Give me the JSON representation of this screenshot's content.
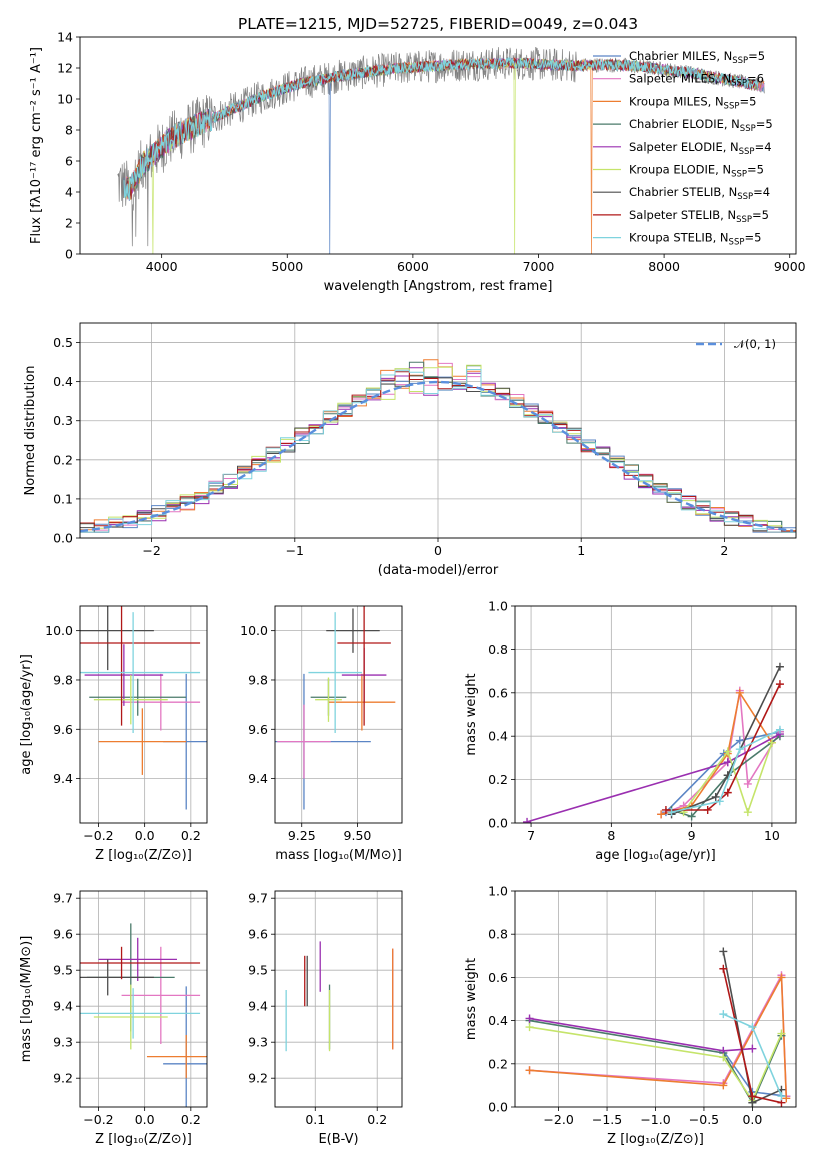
{
  "chart_data": [
    {
      "id": "spectrum",
      "type": "line",
      "title": "PLATE=1215, MJD=52725, FIBERID=0049, z=0.043",
      "xlabel": "wavelength [Angstrom, rest frame]",
      "ylabel": "Flux [fλ10⁻¹⁷ erg cm⁻² s⁻¹ A⁻¹]",
      "xlim": [
        3350,
        9050
      ],
      "ylim": [
        0,
        14
      ],
      "xticks": [
        4000,
        5000,
        6000,
        7000,
        8000,
        9000
      ],
      "yticks": [
        0,
        2,
        4,
        6,
        8,
        10,
        12,
        14
      ],
      "data_color": "#808080",
      "continuum": {
        "x": [
          3650,
          3750,
          3850,
          3950,
          4050,
          4150,
          4250,
          4350,
          4450,
          4550,
          4650,
          4750,
          4850,
          4950,
          5100,
          5300,
          5500,
          5700,
          5900,
          6100,
          6300,
          6500,
          6700,
          6900,
          7100,
          7300,
          7450,
          7600,
          7800,
          8000,
          8200,
          8400,
          8600,
          8800
        ],
        "y": [
          4.6,
          4.2,
          5.8,
          6.5,
          7.3,
          7.8,
          8.2,
          8.6,
          8.9,
          9.3,
          9.6,
          10.0,
          10.3,
          10.6,
          11.0,
          11.3,
          11.6,
          11.8,
          12.0,
          12.1,
          12.2,
          12.25,
          12.3,
          12.3,
          12.2,
          12.15,
          12.2,
          12.2,
          12.1,
          11.9,
          11.7,
          11.4,
          11.1,
          10.8
        ]
      },
      "dips": [
        {
          "series": "Chabrier MILES",
          "x": 5340
        },
        {
          "series": "Kroupa ELODIE",
          "x": 6810
        },
        {
          "series": "Kroupa MILES",
          "x": 7420
        },
        {
          "series": "Kroupa ELODIE",
          "x": 3930
        }
      ]
    },
    {
      "id": "residuals",
      "type": "step",
      "xlabel": "(data-model)/error",
      "ylabel": "Normed distribution",
      "xlim": [
        -2.5,
        2.5
      ],
      "ylim": [
        0,
        0.55
      ],
      "xticks": [
        -2,
        -1,
        0,
        1,
        2
      ],
      "yticks": [
        0.0,
        0.1,
        0.2,
        0.3,
        0.4,
        0.5
      ],
      "bin_width": 0.1,
      "reference": {
        "name": "𝒩(0, 1)",
        "color": "#5a8fdd"
      }
    },
    {
      "id": "age_vs_Z",
      "type": "errorbar",
      "xlabel": "Z [log₁₀(Z/Z⊙)]",
      "ylabel": "age  [log₁₀(age/yr)]",
      "xlim": [
        -0.28,
        0.27
      ],
      "ylim": [
        9.22,
        10.1
      ],
      "xticks": [
        -0.2,
        0.0,
        0.2
      ],
      "yticks": [
        9.4,
        9.6,
        9.8,
        10.0
      ],
      "points": [
        {
          "s": 0,
          "x": 0.18,
          "y": 9.55,
          "xe": 0.1,
          "ye": 0.55
        },
        {
          "s": 1,
          "x": 0.07,
          "y": 9.71,
          "xe": 0.17,
          "ye": 0.23
        },
        {
          "s": 2,
          "x": -0.01,
          "y": 9.55,
          "xe": 0.19,
          "ye": 0.27
        },
        {
          "s": 3,
          "x": -0.03,
          "y": 9.73,
          "xe": 0.21,
          "ye": 0.15
        },
        {
          "s": 4,
          "x": -0.09,
          "y": 9.82,
          "xe": 0.17,
          "ye": 0.25
        },
        {
          "s": 5,
          "x": -0.06,
          "y": 9.72,
          "xe": 0.16,
          "ye": 0.2
        },
        {
          "s": 6,
          "x": -0.16,
          "y": 10.0,
          "xe": 0.2,
          "ye": 0.32
        },
        {
          "s": 7,
          "x": -0.1,
          "y": 9.95,
          "xe": 0.34,
          "ye": 0.67
        },
        {
          "s": 8,
          "x": -0.05,
          "y": 9.83,
          "xe": 0.29,
          "ye": 0.49
        }
      ]
    },
    {
      "id": "age_vs_mass",
      "type": "errorbar",
      "xlabel": "mass [log₁₀(M/M⊙)]",
      "ylabel": "",
      "xlim": [
        9.13,
        9.7
      ],
      "ylim": [
        9.22,
        10.1
      ],
      "xticks": [
        9.25,
        9.5
      ],
      "xticklabels": [
        "9.25",
        "9.50"
      ],
      "yticks": [
        9.4,
        9.6,
        9.8,
        10.0
      ],
      "points": [
        {
          "s": 0,
          "x": 9.26,
          "y": 9.55,
          "xe": 0.3,
          "ye": 0.55
        },
        {
          "s": 1,
          "x": 9.26,
          "y": 9.55,
          "xe": 0.12,
          "ye": 0.3
        },
        {
          "s": 2,
          "x": 9.52,
          "y": 9.71,
          "xe": 0.15,
          "ye": 0.23
        },
        {
          "s": 3,
          "x": 9.37,
          "y": 9.73,
          "xe": 0.08,
          "ye": 0.15
        },
        {
          "s": 4,
          "x": 9.53,
          "y": 9.82,
          "xe": 0.1,
          "ye": 0.22
        },
        {
          "s": 5,
          "x": 9.37,
          "y": 9.72,
          "xe": 0.06,
          "ye": 0.18
        },
        {
          "s": 6,
          "x": 9.48,
          "y": 10.0,
          "xe": 0.12,
          "ye": 0.18
        },
        {
          "s": 7,
          "x": 9.53,
          "y": 9.95,
          "xe": 0.12,
          "ye": 0.67
        },
        {
          "s": 8,
          "x": 9.4,
          "y": 9.83,
          "xe": 0.12,
          "ye": 0.49
        }
      ]
    },
    {
      "id": "weight_vs_age",
      "type": "line",
      "xlabel": "age  [log₁₀(age/yr)]",
      "ylabel": "mass weight",
      "xlim": [
        6.8,
        10.3
      ],
      "ylim": [
        0,
        1.0
      ],
      "xticks": [
        7,
        8,
        9,
        10
      ],
      "yticks": [
        0.0,
        0.2,
        0.4,
        0.6,
        0.8,
        1.0
      ],
      "series_points": [
        {
          "s": 0,
          "x": [
            8.68,
            9.4,
            9.6,
            10.1
          ],
          "y": [
            0.05,
            0.32,
            0.38,
            0.42
          ]
        },
        {
          "s": 1,
          "x": [
            8.62,
            8.9,
            9.45,
            9.6,
            9.7,
            10.1
          ],
          "y": [
            0.04,
            0.08,
            0.28,
            0.61,
            0.18,
            0.42
          ]
        },
        {
          "s": 2,
          "x": [
            8.62,
            9.0,
            9.45,
            9.6,
            10.0
          ],
          "y": [
            0.04,
            0.08,
            0.32,
            0.6,
            0.37
          ]
        },
        {
          "s": 3,
          "x": [
            8.75,
            9.0,
            9.45,
            10.1
          ],
          "y": [
            0.06,
            0.03,
            0.22,
            0.4
          ]
        },
        {
          "s": 4,
          "x": [
            6.95,
            9.45,
            10.1
          ],
          "y": [
            0.005,
            0.28,
            0.41
          ]
        },
        {
          "s": 5,
          "x": [
            8.9,
            9.45,
            9.7,
            10.0
          ],
          "y": [
            0.05,
            0.33,
            0.05,
            0.37
          ]
        },
        {
          "s": 6,
          "x": [
            8.75,
            9.3,
            9.45,
            10.1
          ],
          "y": [
            0.04,
            0.12,
            0.22,
            0.72
          ]
        },
        {
          "s": 7,
          "x": [
            8.68,
            9.2,
            9.45,
            10.1
          ],
          "y": [
            0.06,
            0.06,
            0.14,
            0.64
          ]
        },
        {
          "s": 8,
          "x": [
            8.75,
            9.35,
            9.6,
            10.1
          ],
          "y": [
            0.05,
            0.1,
            0.34,
            0.43
          ]
        }
      ]
    },
    {
      "id": "mass_vs_Z",
      "type": "errorbar",
      "xlabel": "Z [log₁₀(Z/Z⊙)]",
      "ylabel": "mass [log₁₀(M/M⊙)]",
      "xlim": [
        -0.28,
        0.27
      ],
      "ylim": [
        9.12,
        9.72
      ],
      "xticks": [
        -0.2,
        0.0,
        0.2
      ],
      "yticks": [
        9.2,
        9.3,
        9.4,
        9.5,
        9.6,
        9.7
      ],
      "points": [
        {
          "s": 0,
          "x": 0.18,
          "y": 9.24,
          "xe": 0.1,
          "ye": 0.43
        },
        {
          "s": 1,
          "x": 0.07,
          "y": 9.43,
          "xe": 0.17,
          "ye": 0.27
        },
        {
          "s": 2,
          "x": 0.18,
          "y": 9.26,
          "xe": 0.17,
          "ye": 0.12
        },
        {
          "s": 3,
          "x": -0.06,
          "y": 9.48,
          "xe": 0.19,
          "ye": 0.3
        },
        {
          "s": 4,
          "x": -0.03,
          "y": 9.53,
          "xe": 0.17,
          "ye": 0.12
        },
        {
          "s": 5,
          "x": -0.06,
          "y": 9.37,
          "xe": 0.16,
          "ye": 0.18
        },
        {
          "s": 6,
          "x": -0.16,
          "y": 9.48,
          "xe": 0.2,
          "ye": 0.1
        },
        {
          "s": 7,
          "x": -0.1,
          "y": 9.52,
          "xe": 0.34,
          "ye": 0.09
        },
        {
          "s": 8,
          "x": -0.05,
          "y": 9.38,
          "xe": 0.29,
          "ye": 0.14
        }
      ]
    },
    {
      "id": "mass_vs_ebv",
      "type": "errorbar",
      "xlabel": "E(B-V)",
      "ylabel": "",
      "xlim": [
        0.035,
        0.24
      ],
      "ylim": [
        9.12,
        9.72
      ],
      "xticks": [
        0.1,
        0.2
      ],
      "yticks": [
        9.2,
        9.3,
        9.4,
        9.5,
        9.6,
        9.7
      ],
      "points": [
        {
          "s": 0,
          "x": 0.225,
          "y": 9.42,
          "xe": 0,
          "ye": 0.27
        },
        {
          "s": 1,
          "x": 0.225,
          "y": 9.42,
          "xe": 0,
          "ye": 0.28
        },
        {
          "s": 2,
          "x": 0.225,
          "y": 9.42,
          "xe": 0,
          "ye": 0.28
        },
        {
          "s": 3,
          "x": 0.123,
          "y": 9.37,
          "xe": 0,
          "ye": 0.18
        },
        {
          "s": 4,
          "x": 0.108,
          "y": 9.51,
          "xe": 0,
          "ye": 0.14
        },
        {
          "s": 5,
          "x": 0.123,
          "y": 9.36,
          "xe": 0,
          "ye": 0.17
        },
        {
          "s": 6,
          "x": 0.087,
          "y": 9.47,
          "xe": 0,
          "ye": 0.14
        },
        {
          "s": 7,
          "x": 0.083,
          "y": 9.47,
          "xe": 0,
          "ye": 0.14
        },
        {
          "s": 8,
          "x": 0.053,
          "y": 9.36,
          "xe": 0,
          "ye": 0.17
        }
      ]
    },
    {
      "id": "weight_vs_Z",
      "type": "line",
      "xlabel": "Z [log₁₀(Z/Z⊙)]",
      "ylabel": "mass weight",
      "xlim": [
        -2.45,
        0.45
      ],
      "ylim": [
        0,
        1.0
      ],
      "xticks": [
        -2.0,
        -1.5,
        -1.0,
        -0.5,
        0.0
      ],
      "yticks": [
        0.0,
        0.2,
        0.4,
        0.6,
        0.8,
        1.0
      ],
      "series_points": [
        {
          "s": 0,
          "x": [
            -0.3,
            0.0,
            0.35
          ],
          "y": [
            0.26,
            0.07,
            0.05
          ]
        },
        {
          "s": 1,
          "x": [
            -2.3,
            -0.3,
            0.3,
            0.35
          ],
          "y": [
            0.17,
            0.11,
            0.61,
            0.05
          ]
        },
        {
          "s": 2,
          "x": [
            -2.3,
            -0.3,
            0.3,
            0.35
          ],
          "y": [
            0.17,
            0.1,
            0.6,
            0.04
          ]
        },
        {
          "s": 3,
          "x": [
            -2.3,
            -0.3,
            0.0,
            0.3
          ],
          "y": [
            0.4,
            0.25,
            0.02,
            0.33
          ]
        },
        {
          "s": 4,
          "x": [
            -2.3,
            -0.3,
            0.0
          ],
          "y": [
            0.41,
            0.26,
            0.27
          ]
        },
        {
          "s": 5,
          "x": [
            -2.3,
            -0.3,
            0.0,
            0.3
          ],
          "y": [
            0.37,
            0.23,
            0.03,
            0.34
          ]
        },
        {
          "s": 6,
          "x": [
            -0.3,
            0.0,
            0.3
          ],
          "y": [
            0.72,
            0.02,
            0.08
          ]
        },
        {
          "s": 7,
          "x": [
            -0.3,
            0.0,
            0.3
          ],
          "y": [
            0.64,
            0.05,
            0.02
          ]
        },
        {
          "s": 8,
          "x": [
            -0.3,
            0.0,
            0.3
          ],
          "y": [
            0.43,
            0.37,
            0.05
          ]
        }
      ]
    }
  ],
  "legend": {
    "placement": "top-right",
    "entries": [
      {
        "name": "Chabrier MILES, N",
        "nsub": "SSP",
        "count": "=5",
        "color": "#5b85c5"
      },
      {
        "name": "Salpeter MILES, N",
        "nsub": "SSP",
        "count": "=6",
        "color": "#e377c2"
      },
      {
        "name": "Kroupa MILES, N",
        "nsub": "SSP",
        "count": "=5",
        "color": "#ed7d31"
      },
      {
        "name": "Chabrier ELODIE, N",
        "nsub": "SSP",
        "count": "=5",
        "color": "#4a7a6a"
      },
      {
        "name": "Salpeter ELODIE, N",
        "nsub": "SSP",
        "count": "=4",
        "color": "#9a2fb0"
      },
      {
        "name": "Kroupa ELODIE, N",
        "nsub": "SSP",
        "count": "=5",
        "color": "#c5e46a"
      },
      {
        "name": "Chabrier STELIB, N",
        "nsub": "SSP",
        "count": "=4",
        "color": "#4d4d4d"
      },
      {
        "name": "Salpeter STELIB, N",
        "nsub": "SSP",
        "count": "=5",
        "color": "#b01818"
      },
      {
        "name": "Kroupa STELIB, N",
        "nsub": "SSP",
        "count": "=5",
        "color": "#7fd3de"
      }
    ]
  }
}
